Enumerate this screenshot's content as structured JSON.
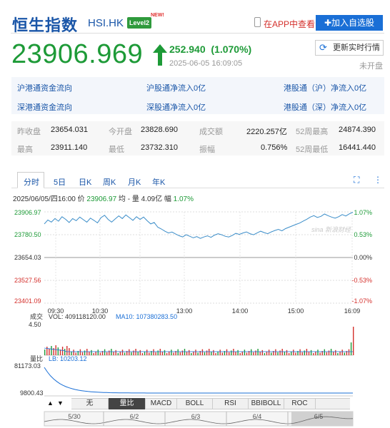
{
  "header": {
    "name": "恒生指数",
    "code": "HSI.HK",
    "level_badge": "Level2",
    "new_tag": "NEW!",
    "app_view": "在APP中查看",
    "add_favorite": "✚加入自选股"
  },
  "quote": {
    "price": "23906.969",
    "change": "252.940",
    "change_pct": "(1.070%)",
    "datetime": "2025-06-05 16:09:05",
    "refresh": "更新实时行情",
    "status": "未开盘",
    "color_up": "#1d9a37"
  },
  "flows": [
    [
      "沪港通资金流向",
      "沪股通净流入0亿",
      "港股通（沪）净流入0亿"
    ],
    [
      "深港通资金流向",
      "深股通净流入0亿",
      "港股通（深）净流入0亿"
    ]
  ],
  "stats": {
    "row1": [
      {
        "label": "昨收盘",
        "value": "23654.031"
      },
      {
        "label": "今开盘",
        "value": "23828.690"
      },
      {
        "label": "成交额",
        "value": "2220.257亿"
      },
      {
        "label": "52周最高",
        "value": "24874.390"
      }
    ],
    "row2": [
      {
        "label": "最高",
        "value": "23911.140"
      },
      {
        "label": "最低",
        "value": "23732.310"
      },
      {
        "label": "振幅",
        "value": "0.756%"
      },
      {
        "label": "52周最低",
        "value": "16441.440"
      }
    ]
  },
  "tabs": [
    "分时",
    "5日",
    "日K",
    "周K",
    "月K",
    "年K"
  ],
  "chart_info": {
    "date": "2025/06/05/四16:00",
    "price_label": "价",
    "price": "23906.97",
    "avg_label": "均",
    "avg": "-",
    "vol_label": "量",
    "vol": "4.09亿",
    "amp_label": "幅",
    "amp": "1.07%"
  },
  "chart_data": {
    "type": "line",
    "y_ticks": [
      "23906.97",
      "23780.50",
      "23654.03",
      "23527.56",
      "23401.09"
    ],
    "y_pct_ticks": [
      "1.07%",
      "0.53%",
      "0.00%",
      "-0.53%",
      "-1.07%"
    ],
    "x_ticks": [
      "09:30",
      "10:30",
      "13:00",
      "14:00",
      "15:00",
      "16:09"
    ],
    "ylim": [
      23401.09,
      23906.97
    ],
    "prev_close": 23654.03,
    "series": [
      {
        "values": [
          23840,
          23862,
          23850,
          23870,
          23855,
          23880,
          23866,
          23848,
          23870,
          23858,
          23878,
          23864,
          23850,
          23872,
          23860,
          23846,
          23875,
          23888,
          23865,
          23850,
          23868,
          23885,
          23870,
          23890,
          23875,
          23860,
          23880,
          23865,
          23878,
          23858,
          23840,
          23848,
          23822,
          23812,
          23800,
          23790,
          23795,
          23785,
          23775,
          23768,
          23780,
          23772,
          23763,
          23770,
          23760,
          23768,
          23774,
          23766,
          23778,
          23786,
          23780,
          23772,
          23768,
          23776,
          23788,
          23782,
          23790,
          23796,
          23786,
          23780,
          23790,
          23800,
          23792,
          23786,
          23796,
          23804,
          23810,
          23802,
          23814,
          23822,
          23830,
          23838,
          23845,
          23856,
          23866,
          23878,
          23886,
          23876,
          23882,
          23895,
          23886,
          23878,
          23872,
          23880,
          23892,
          23884,
          23896,
          23905
        ]
      }
    ],
    "volume": {
      "label": "成交",
      "vol_label": "VOL: 409118120.00",
      "ma_label": "MA10: 107380283.50",
      "max_tick": "4.50"
    },
    "ratio": {
      "label": "量比",
      "lb_label": "LB: 10203.12",
      "ticks": [
        "81173.03",
        "9800.43"
      ]
    },
    "mini_dates": [
      "5/30",
      "6/2",
      "6/3",
      "6/4",
      "6/5"
    ]
  },
  "watermark": "sina 新浪财经",
  "indicators": [
    "无",
    "量比",
    "MACD",
    "BOLL",
    "RSI",
    "BBIBOLL",
    "ROC"
  ],
  "nav": {
    "up": "▲",
    "down": "▼"
  }
}
